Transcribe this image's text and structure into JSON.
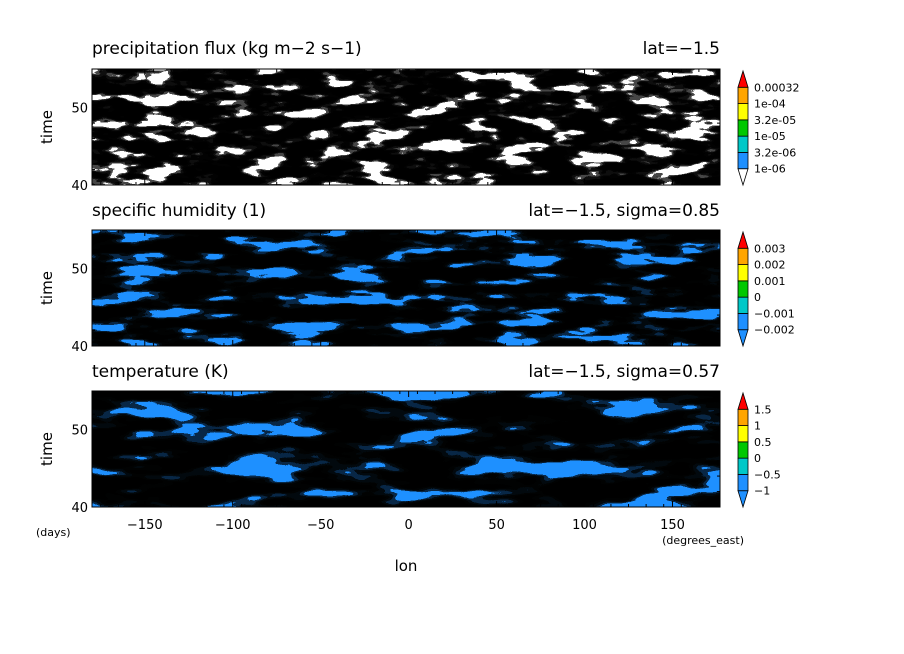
{
  "chart_data": [
    {
      "type": "heatmap",
      "title": "precipitation flux (kg m−2 s−1)",
      "subtitle": "lat=−1.5",
      "ylabel": "time",
      "xlim": [
        -180,
        177
      ],
      "ylim": [
        40,
        55
      ],
      "yticks": [
        40,
        50
      ],
      "ytick_labels": [
        "40",
        "50"
      ],
      "colorbar": {
        "labels": [
          "1e-06",
          "3.2e-06",
          "1e-05",
          "3.2e-05",
          "1e-04",
          "0.00032"
        ],
        "colors": [
          "#ffffff",
          "#1e90ff",
          "#00c8c8",
          "#00c800",
          "#ffff00",
          "#ffa500",
          "#ff0000"
        ]
      }
    },
    {
      "type": "heatmap",
      "title": "specific humidity (1)",
      "subtitle": "lat=−1.5, sigma=0.85",
      "ylabel": "time",
      "xlim": [
        -180,
        177
      ],
      "ylim": [
        40,
        55
      ],
      "yticks": [
        40,
        50
      ],
      "ytick_labels": [
        "40",
        "50"
      ],
      "colorbar": {
        "labels": [
          "−0.002",
          "−0.001",
          "0",
          "0.001",
          "0.002",
          "0.003"
        ],
        "colors": [
          "#1e90ff",
          "#1e90ff",
          "#00c8c8",
          "#00c800",
          "#ffff00",
          "#ffa500",
          "#ff0000"
        ]
      }
    },
    {
      "type": "heatmap",
      "title": "temperature (K)",
      "subtitle": "lat=−1.5, sigma=0.57",
      "ylabel": "time",
      "xlabel": "lon",
      "xlim": [
        -180,
        177
      ],
      "ylim": [
        40,
        55
      ],
      "yticks": [
        40,
        50
      ],
      "ytick_labels": [
        "40",
        "50"
      ],
      "xticks": [
        -150,
        -100,
        -50,
        0,
        50,
        100,
        150
      ],
      "xtick_labels": [
        "−150",
        "−100",
        "−50",
        "0",
        "50",
        "100",
        "150"
      ],
      "x_unit": "(degrees_east)",
      "y_unit": "(days)",
      "colorbar": {
        "labels": [
          "−1",
          "−0.5",
          "0",
          "0.5",
          "1",
          "1.5"
        ],
        "colors": [
          "#1e90ff",
          "#1e90ff",
          "#00c8c8",
          "#00c800",
          "#ffff00",
          "#ffa500",
          "#ff0000"
        ]
      }
    }
  ]
}
